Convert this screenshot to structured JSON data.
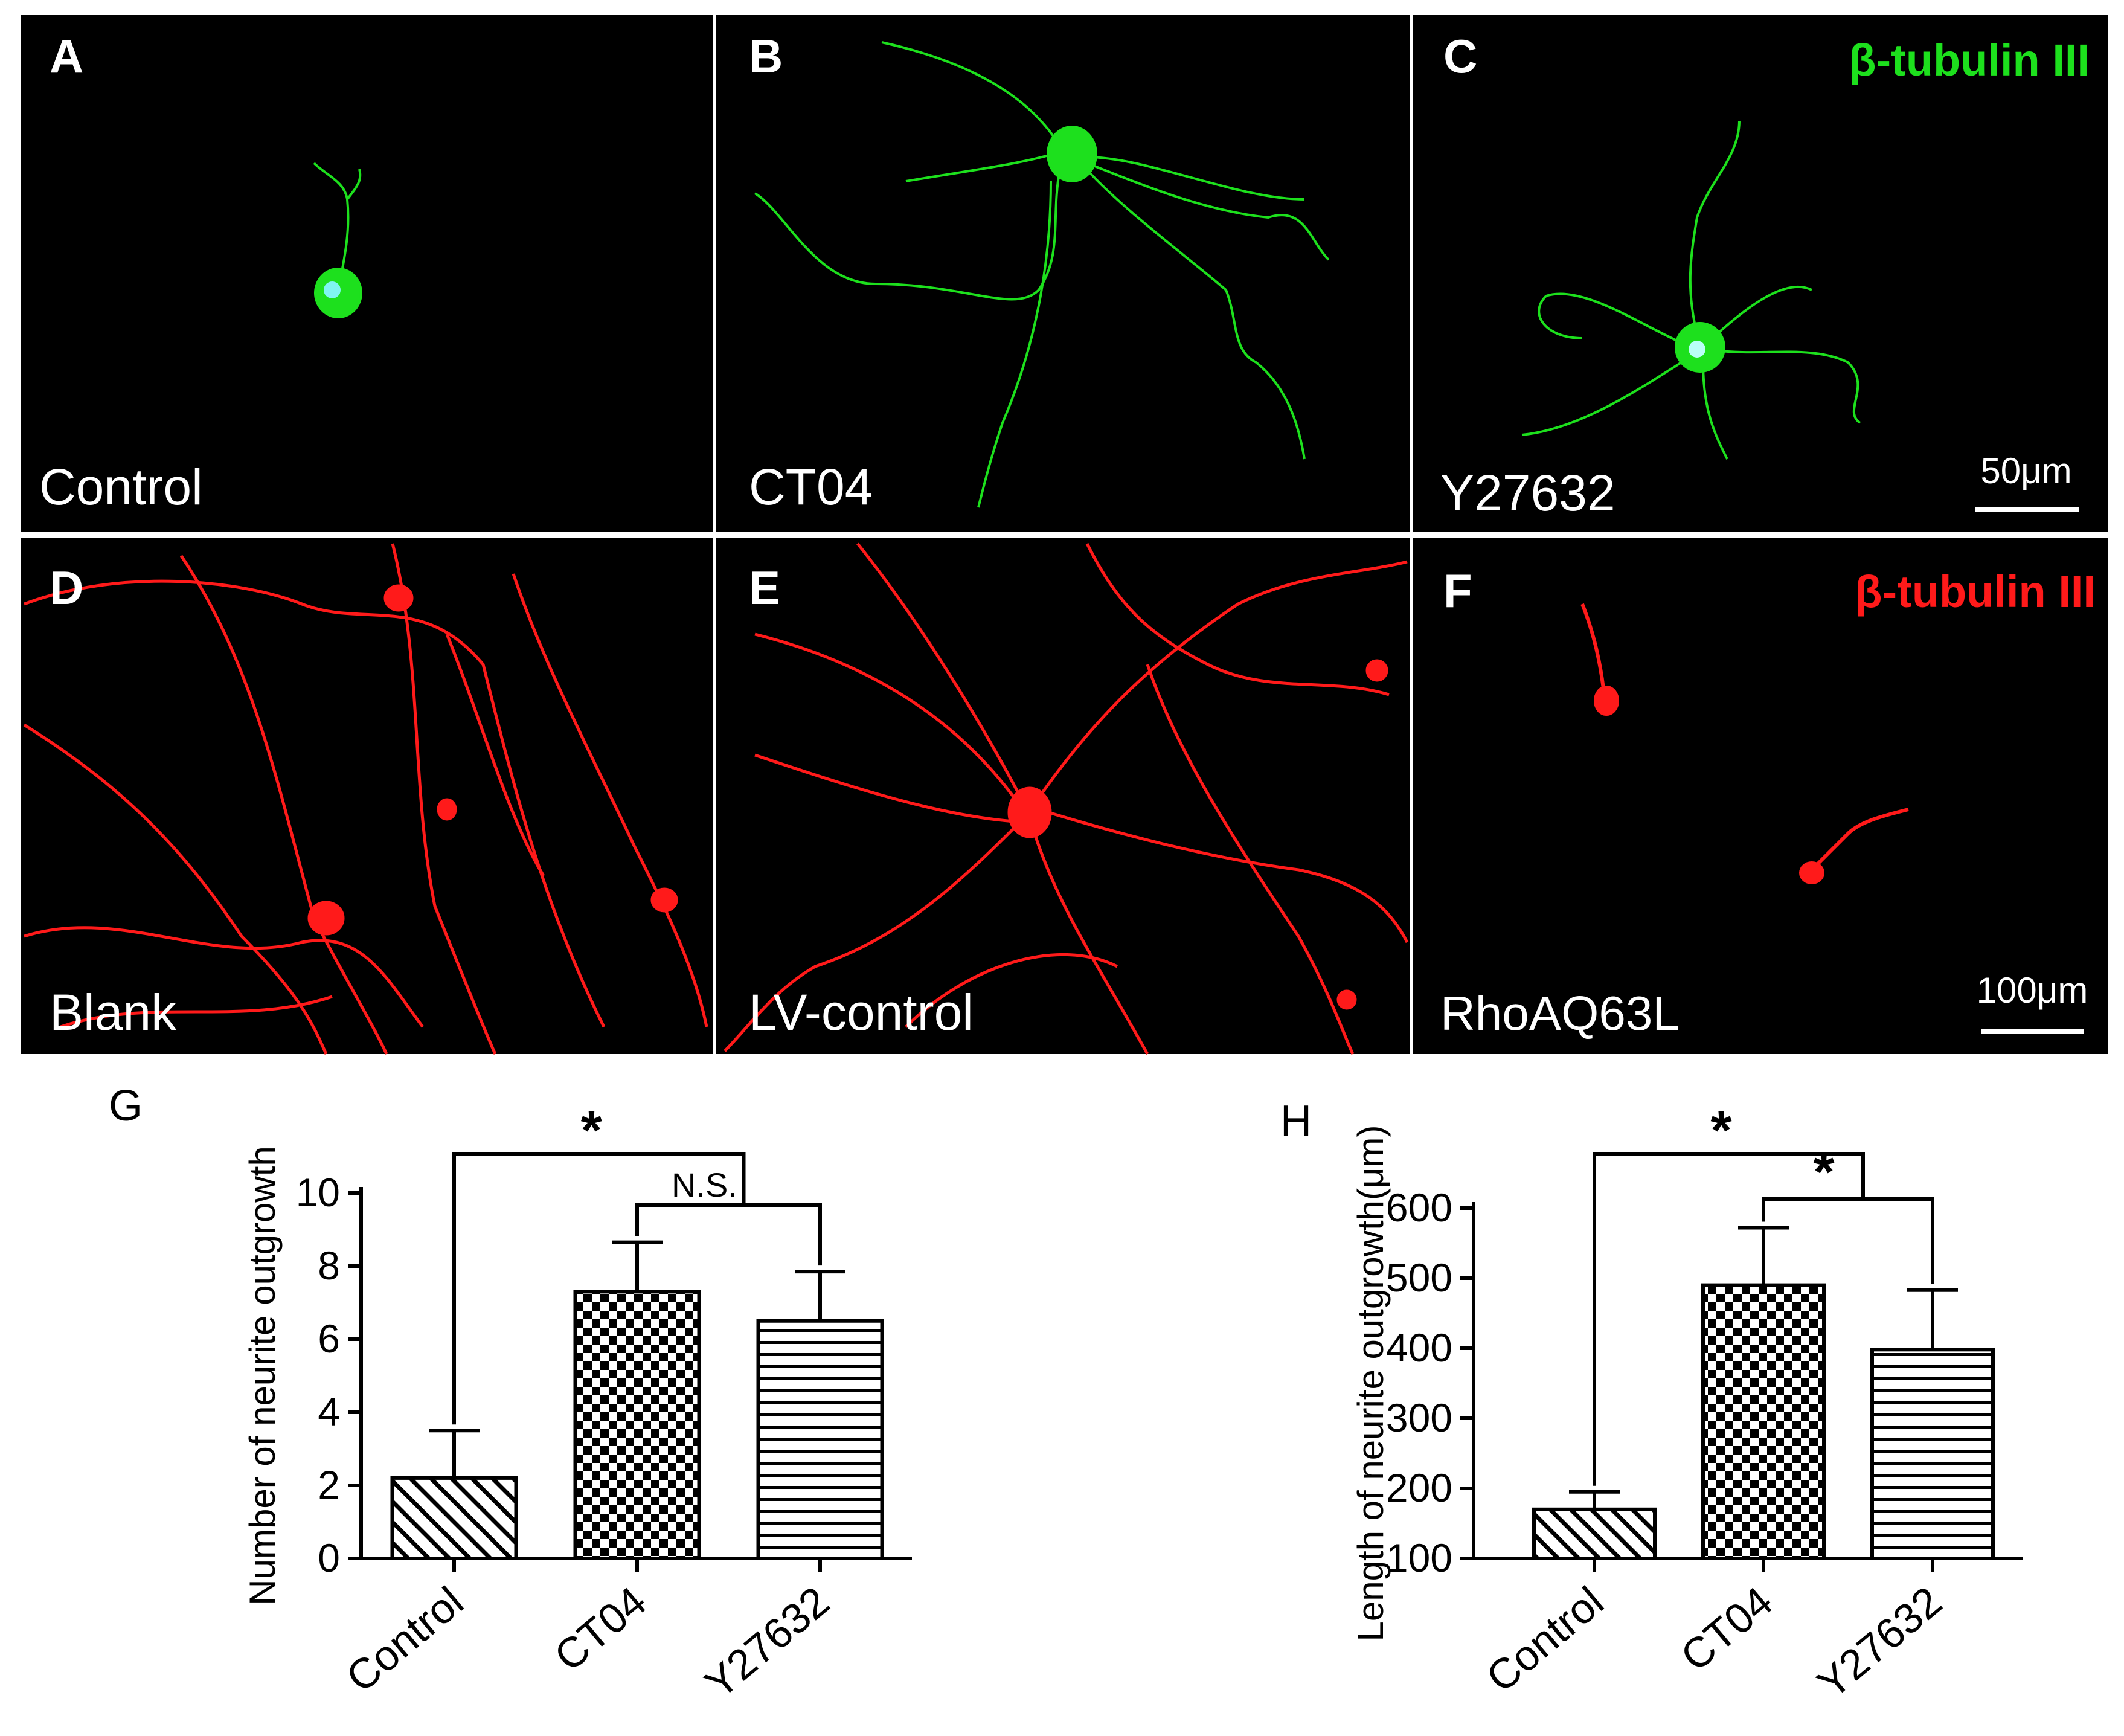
{
  "panels": [
    {
      "letter": "A",
      "condition": "Control",
      "stain": "",
      "scale": ""
    },
    {
      "letter": "B",
      "condition": "CT04",
      "stain": "",
      "scale": ""
    },
    {
      "letter": "C",
      "condition": "Y27632",
      "stain": "β-tubulin III",
      "scale": "50μm"
    },
    {
      "letter": "D",
      "condition": "Blank",
      "stain": "",
      "scale": ""
    },
    {
      "letter": "E",
      "condition": "LV-control",
      "stain": "",
      "scale": ""
    },
    {
      "letter": "F",
      "condition": "RhoAQ63L",
      "stain": "β-tubulin III",
      "scale": "100μm"
    }
  ],
  "colors": {
    "green": "#1de01d",
    "red": "#ff1a1a",
    "bg": "#000000"
  },
  "chart_data": [
    {
      "panel": "G",
      "type": "bar",
      "categories": [
        "Control",
        "CT04",
        "Y27632"
      ],
      "values": [
        2.2,
        7.3,
        6.5
      ],
      "errors": [
        1.3,
        1.35,
        1.35
      ],
      "patterns": [
        "diagonal-hatch",
        "checkerboard",
        "horizontal-lines"
      ],
      "ylabel": "Number of neurite outgrowth",
      "ylim": [
        0,
        10
      ],
      "yticks": [
        0,
        2,
        4,
        6,
        8,
        10
      ],
      "significance": [
        {
          "from": 0,
          "to": "1-2",
          "label": "*"
        },
        {
          "from": 1,
          "to": 2,
          "label": "N.S."
        }
      ]
    },
    {
      "panel": "H",
      "type": "bar",
      "categories": [
        "Control",
        "CT04",
        "Y27632"
      ],
      "values": [
        170,
        490,
        398
      ],
      "errors": [
        25,
        82,
        85
      ],
      "patterns": [
        "diagonal-hatch",
        "checkerboard",
        "horizontal-lines"
      ],
      "ylabel": "Length of neurite outgrowth(μm)",
      "ylim": [
        100,
        600
      ],
      "yticks": [
        100,
        200,
        300,
        400,
        500,
        600
      ],
      "significance": [
        {
          "from": 0,
          "to": "1-2",
          "label": "*"
        },
        {
          "from": 1,
          "to": 2,
          "label": "*"
        }
      ]
    }
  ]
}
